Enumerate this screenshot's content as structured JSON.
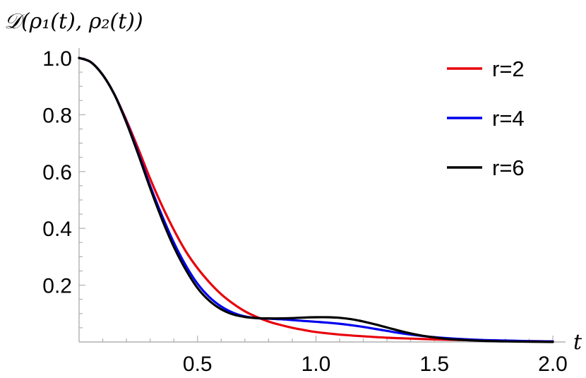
{
  "chart_data": {
    "type": "line",
    "ylabel": "𝒟(ρ₁(t), ρ₂(t))",
    "xlabel": "t",
    "xlim": [
      0,
      2.0
    ],
    "ylim": [
      0,
      1.0
    ],
    "x_ticks": [
      {
        "value": 0.5,
        "label": "0.5"
      },
      {
        "value": 1.0,
        "label": "1.0"
      },
      {
        "value": 1.5,
        "label": "1.5"
      },
      {
        "value": 2.0,
        "label": "2.0"
      }
    ],
    "y_ticks": [
      {
        "value": 0.2,
        "label": "0.2"
      },
      {
        "value": 0.4,
        "label": "0.4"
      },
      {
        "value": 0.6,
        "label": "0.6"
      },
      {
        "value": 0.8,
        "label": "0.8"
      },
      {
        "value": 1.0,
        "label": "1.0"
      }
    ],
    "grid": false,
    "legend_position": "top-right",
    "series": [
      {
        "name": "r=2",
        "color": "#e8000b",
        "x": [
          0,
          0.05,
          0.1,
          0.15,
          0.2,
          0.25,
          0.3,
          0.35,
          0.4,
          0.45,
          0.5,
          0.55,
          0.6,
          0.65,
          0.7,
          0.75,
          0.8,
          0.85,
          0.9,
          0.95,
          1.0,
          1.1,
          1.2,
          1.3,
          1.4,
          1.5,
          1.6,
          1.7,
          1.8,
          1.9,
          2.0
        ],
        "y": [
          1.0,
          0.985,
          0.94,
          0.87,
          0.78,
          0.68,
          0.575,
          0.48,
          0.395,
          0.32,
          0.26,
          0.21,
          0.168,
          0.135,
          0.108,
          0.088,
          0.072,
          0.06,
          0.05,
          0.042,
          0.035,
          0.026,
          0.02,
          0.015,
          0.012,
          0.009,
          0.007,
          0.005,
          0.004,
          0.003,
          0.002
        ]
      },
      {
        "name": "r=4",
        "color": "#0000ee",
        "x": [
          0,
          0.05,
          0.1,
          0.15,
          0.2,
          0.25,
          0.3,
          0.35,
          0.4,
          0.45,
          0.5,
          0.55,
          0.6,
          0.65,
          0.7,
          0.75,
          0.8,
          0.85,
          0.9,
          0.95,
          1.0,
          1.05,
          1.1,
          1.15,
          1.2,
          1.25,
          1.3,
          1.35,
          1.4,
          1.45,
          1.5,
          1.6,
          1.7,
          1.8,
          1.9,
          2.0
        ],
        "y": [
          1.0,
          0.985,
          0.94,
          0.87,
          0.775,
          0.665,
          0.55,
          0.445,
          0.35,
          0.27,
          0.205,
          0.158,
          0.125,
          0.103,
          0.09,
          0.084,
          0.082,
          0.08,
          0.077,
          0.074,
          0.071,
          0.068,
          0.064,
          0.059,
          0.053,
          0.046,
          0.039,
          0.032,
          0.026,
          0.021,
          0.017,
          0.011,
          0.007,
          0.005,
          0.003,
          0.002
        ]
      },
      {
        "name": "r=6",
        "color": "#000000",
        "x": [
          0,
          0.05,
          0.1,
          0.15,
          0.2,
          0.25,
          0.3,
          0.35,
          0.4,
          0.45,
          0.5,
          0.55,
          0.6,
          0.65,
          0.7,
          0.75,
          0.8,
          0.85,
          0.9,
          0.95,
          1.0,
          1.05,
          1.1,
          1.15,
          1.2,
          1.25,
          1.3,
          1.35,
          1.4,
          1.45,
          1.5,
          1.55,
          1.6,
          1.7,
          1.8,
          1.9,
          2.0
        ],
        "y": [
          1.0,
          0.985,
          0.94,
          0.87,
          0.772,
          0.66,
          0.542,
          0.432,
          0.335,
          0.255,
          0.19,
          0.145,
          0.115,
          0.097,
          0.088,
          0.084,
          0.083,
          0.083,
          0.084,
          0.086,
          0.087,
          0.087,
          0.085,
          0.08,
          0.072,
          0.062,
          0.051,
          0.04,
          0.03,
          0.022,
          0.016,
          0.011,
          0.008,
          0.004,
          0.002,
          0.001,
          0.0
        ]
      }
    ]
  }
}
